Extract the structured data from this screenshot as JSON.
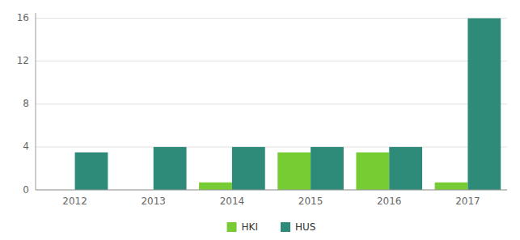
{
  "chart_data": {
    "type": "bar",
    "categories": [
      "2012",
      "2013",
      "2014",
      "2015",
      "2016",
      "2017"
    ],
    "series": [
      {
        "name": "HKI",
        "color": "#77cc33",
        "values": [
          0,
          0,
          0.7,
          3.5,
          3.5,
          0.7
        ]
      },
      {
        "name": "HUS",
        "color": "#2e8b7a",
        "values": [
          3.5,
          4,
          4,
          4,
          4,
          16
        ]
      }
    ],
    "ylim": [
      0,
      16.5
    ],
    "yticks": [
      0,
      4,
      8,
      12,
      16
    ],
    "grid": true,
    "legend": "bottom"
  }
}
